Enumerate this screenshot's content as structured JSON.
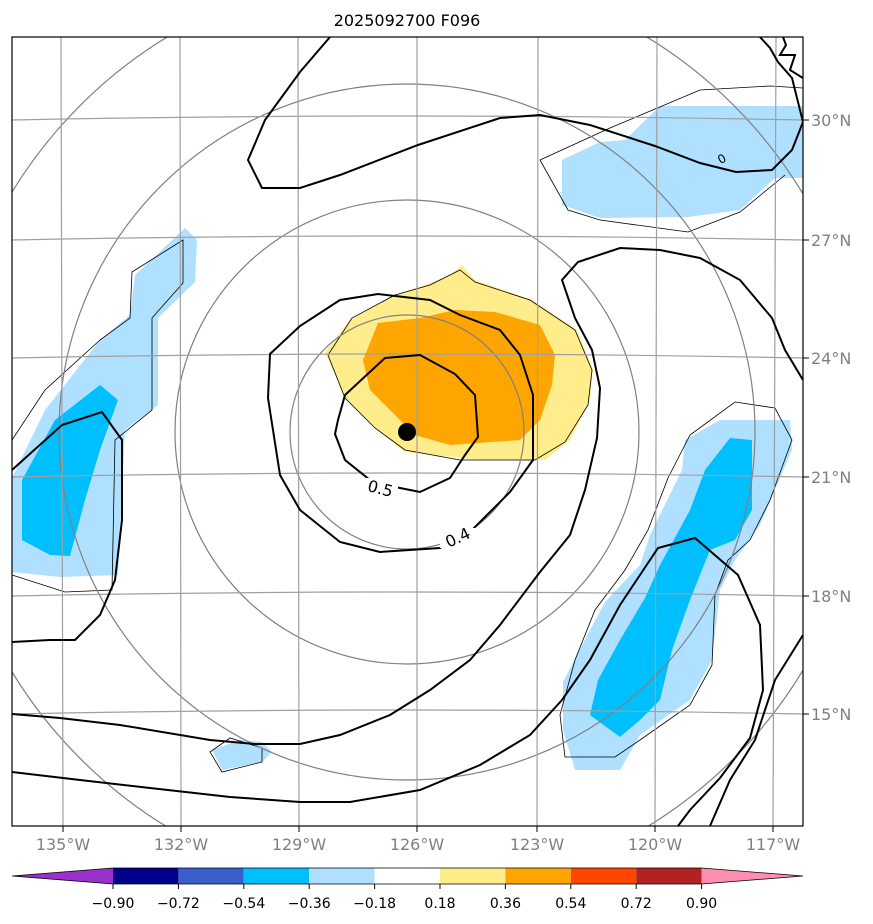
{
  "chart_data": {
    "type": "heatmap",
    "title": "2025092700 F096",
    "projection": "polar-stereographic map, lat/lon graticule",
    "lon_ticks": [
      "135°W",
      "132°W",
      "129°W",
      "126°W",
      "123°W",
      "120°W",
      "117°W"
    ],
    "lat_ticks": [
      "30°N",
      "27°N",
      "24°N",
      "21°N",
      "18°N",
      "15°N"
    ],
    "gridlines": true,
    "colorbar": {
      "orientation": "horizontal",
      "extend": "both",
      "levels": [
        "−0.90",
        "−0.72",
        "−0.54",
        "−0.36",
        "−0.18",
        "0.18",
        "0.36",
        "0.54",
        "0.72",
        "0.90"
      ],
      "colors": [
        "#9932cc",
        "#00008b",
        "#3a5fcd",
        "#00bfff",
        "#b0e0ff",
        "#ffffff",
        "#ffec8b",
        "#ffa500",
        "#ff4500",
        "#b22222",
        "#ff8fb0"
      ]
    },
    "contour_labels": [
      "0.5",
      "0.4"
    ],
    "isolated_label": "0",
    "center_marker": {
      "lon": -126.3,
      "lat": 22.1
    }
  }
}
